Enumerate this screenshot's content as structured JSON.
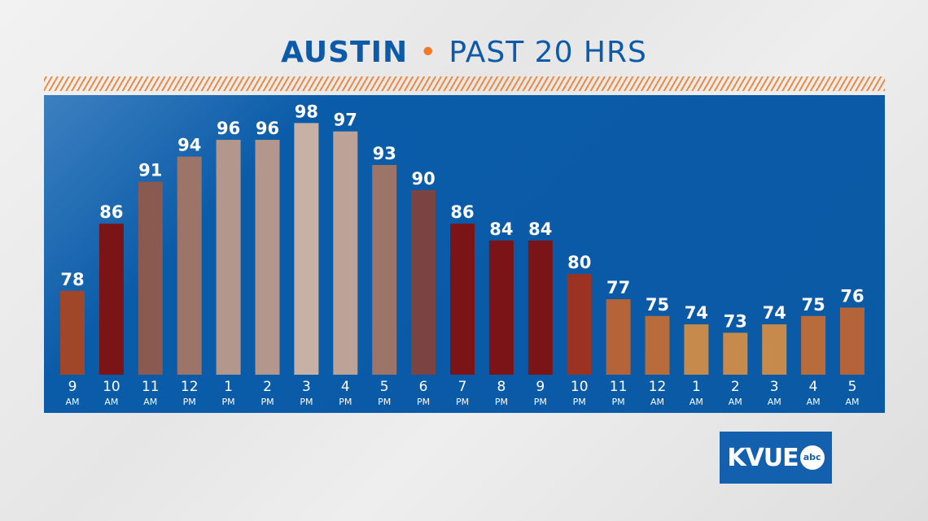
{
  "header": {
    "city": "AUSTIN",
    "separator": "•",
    "subtitle": "PAST 20 HRS"
  },
  "logo": {
    "text": "KVUE",
    "network": "abc"
  },
  "colors": {
    "title": "#0d5ba8",
    "accent": "#f07a28",
    "panel": "#0a5aa6"
  },
  "chart_data": {
    "type": "bar",
    "title": "AUSTIN • PAST 20 HRS",
    "ylim": [
      68,
      100
    ],
    "grid": false,
    "categories": [
      [
        "9",
        "AM"
      ],
      [
        "10",
        "AM"
      ],
      [
        "11",
        "AM"
      ],
      [
        "12",
        "PM"
      ],
      [
        "1",
        "PM"
      ],
      [
        "2",
        "PM"
      ],
      [
        "3",
        "PM"
      ],
      [
        "4",
        "PM"
      ],
      [
        "5",
        "PM"
      ],
      [
        "6",
        "PM"
      ],
      [
        "7",
        "PM"
      ],
      [
        "8",
        "PM"
      ],
      [
        "9",
        "PM"
      ],
      [
        "10",
        "PM"
      ],
      [
        "11",
        "PM"
      ],
      [
        "12",
        "AM"
      ],
      [
        "1",
        "AM"
      ],
      [
        "2",
        "AM"
      ],
      [
        "3",
        "AM"
      ],
      [
        "4",
        "AM"
      ],
      [
        "5",
        "AM"
      ]
    ],
    "values": [
      78,
      86,
      91,
      94,
      96,
      96,
      98,
      97,
      93,
      90,
      86,
      84,
      84,
      80,
      77,
      75,
      74,
      73,
      74,
      75,
      76
    ],
    "bar_colors": [
      "#a0472a",
      "#7b1416",
      "#8a5a50",
      "#9c7468",
      "#b3968c",
      "#b3968c",
      "#c7b0a6",
      "#bda298",
      "#9c7468",
      "#7b4440",
      "#7b1416",
      "#7b1416",
      "#7b1416",
      "#9b3222",
      "#b5643a",
      "#b86c3c",
      "#c68a4c",
      "#c68a4c",
      "#c68a4c",
      "#b86c3c",
      "#b5643a"
    ]
  }
}
